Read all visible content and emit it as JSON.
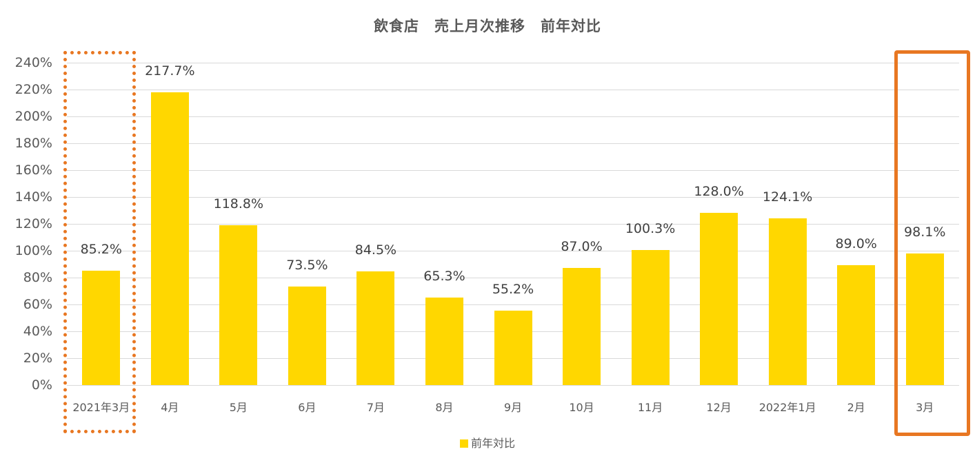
{
  "chart_data": {
    "type": "bar",
    "title": "飲食店　売上月次推移　前年対比",
    "xlabel": "",
    "ylabel": "",
    "categories": [
      "2021年3月",
      "4月",
      "5月",
      "6月",
      "7月",
      "8月",
      "9月",
      "10月",
      "11月",
      "12月",
      "2022年1月",
      "2月",
      "3月"
    ],
    "series": [
      {
        "name": "前年対比",
        "color": "#ffd700",
        "values": [
          85.2,
          217.7,
          118.8,
          73.5,
          84.5,
          65.3,
          55.2,
          87.0,
          100.3,
          128.0,
          124.1,
          89.0,
          98.1
        ],
        "labels": [
          "85.2%",
          "217.7%",
          "118.8%",
          "73.5%",
          "84.5%",
          "65.3%",
          "55.2%",
          "87.0%",
          "100.3%",
          "128.0%",
          "124.1%",
          "89.0%",
          "98.1%"
        ]
      }
    ],
    "ylim": [
      0,
      240
    ],
    "yticks": [
      "0%",
      "20%",
      "40%",
      "60%",
      "80%",
      "100%",
      "120%",
      "140%",
      "160%",
      "180%",
      "200%",
      "220%",
      "240%"
    ],
    "grid": true,
    "legend_position": "bottom",
    "annotations": [
      {
        "type": "dotted-box",
        "target": "2021年3月",
        "color": "#e87722"
      },
      {
        "type": "solid-box",
        "target": "3月",
        "color": "#e87722"
      }
    ]
  },
  "legend": {
    "label": "前年対比"
  }
}
